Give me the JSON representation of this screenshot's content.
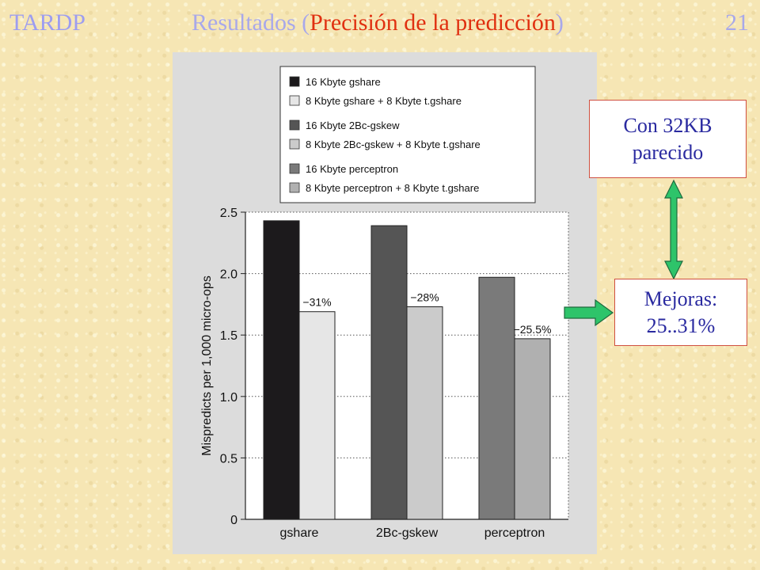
{
  "header": {
    "left_label": "TARDP",
    "title_prefix": "Resultados (",
    "title_highlight": "Precisión de la predicción",
    "title_suffix": ")",
    "page_number": "21"
  },
  "notes": {
    "top_line1": "Con 32KB",
    "top_line2": "parecido",
    "bottom_line1": "Mejoras:",
    "bottom_line2": "25..31%"
  },
  "colors": {
    "arrow": "#2ec46a",
    "note_border": "#d05040",
    "note_text": "#2a2aa0"
  },
  "chart_data": {
    "type": "bar",
    "ylabel": "Mispredicts per 1,000 micro-ops",
    "xlabel": "",
    "ylim": [
      0,
      2.5
    ],
    "yticks": [
      0,
      0.5,
      1.0,
      1.5,
      2.0,
      2.5
    ],
    "ytick_labels": [
      "0",
      "0.5",
      "1.0",
      "1.5",
      "2.0",
      "2.5"
    ],
    "grid": "horizontal dotted",
    "legend_position": "top",
    "categories": [
      "gshare",
      "2Bc-gskew",
      "perceptron"
    ],
    "legend": [
      {
        "label": "16 Kbyte gshare",
        "color": "#1c1a1c"
      },
      {
        "label": "8 Kbyte gshare + 8 Kbyte t.gshare",
        "color": "#e6e6e6"
      },
      {
        "label": "16 Kbyte 2Bc-gskew",
        "color": "#555555"
      },
      {
        "label": "8 Kbyte 2Bc-gskew + 8 Kbyte t.gshare",
        "color": "#cbcbcb"
      },
      {
        "label": "16 Kbyte perceptron",
        "color": "#7a7a7a"
      },
      {
        "label": "8 Kbyte perceptron + 8 Kbyte t.gshare",
        "color": "#b0b0b0"
      }
    ],
    "bars": [
      {
        "category": "gshare",
        "baseline": 2.43,
        "combined": 1.69,
        "annotation": "−31%",
        "baseline_color": "#1c1a1c",
        "combined_color": "#e6e6e6"
      },
      {
        "category": "2Bc-gskew",
        "baseline": 2.39,
        "combined": 1.73,
        "annotation": "−28%",
        "baseline_color": "#555555",
        "combined_color": "#cbcbcb"
      },
      {
        "category": "perceptron",
        "baseline": 1.97,
        "combined": 1.47,
        "annotation": "−25.5%",
        "baseline_color": "#7a7a7a",
        "combined_color": "#b0b0b0"
      }
    ]
  }
}
